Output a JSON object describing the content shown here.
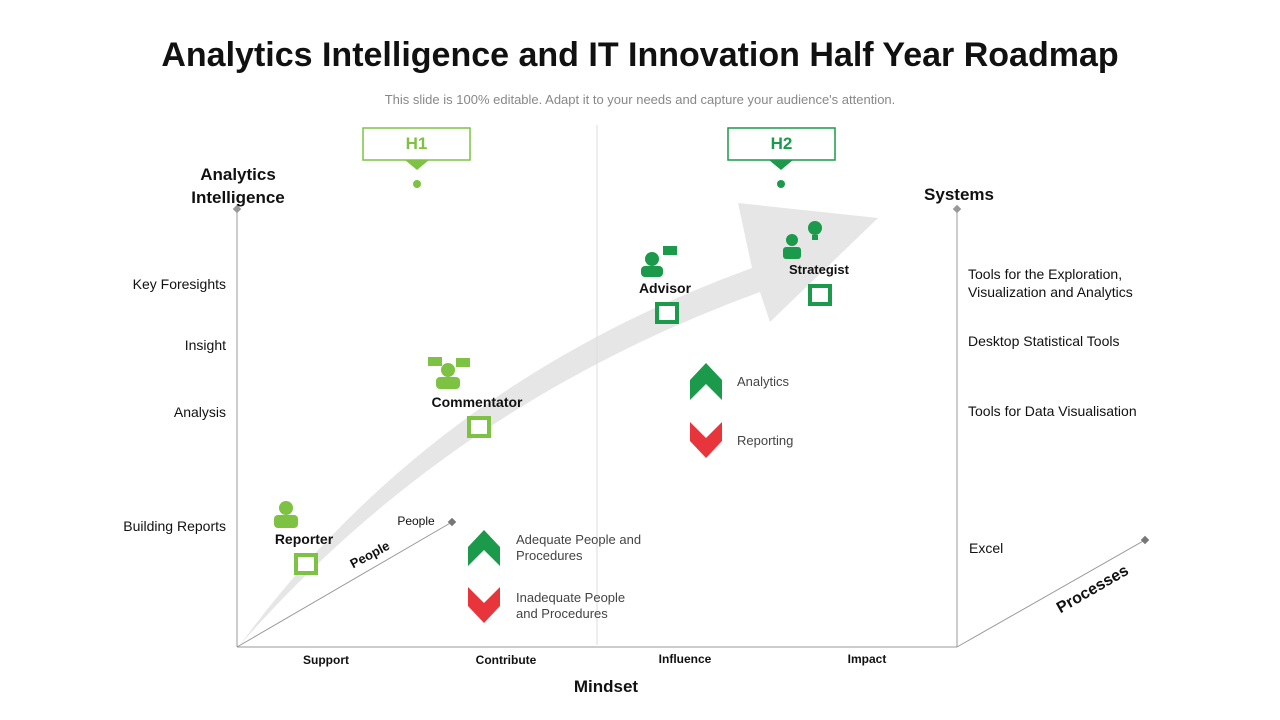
{
  "title": "Analytics Intelligence and IT Innovation Half Year Roadmap",
  "subtitle": "This slide is 100% editable. Adapt it to your needs and capture your audience's attention.",
  "halves": [
    "H1",
    "H2"
  ],
  "left_axis": {
    "title": "Analytics Intelligence",
    "levels": [
      "Key Foresights",
      "Insight",
      "Analysis",
      "Building Reports"
    ]
  },
  "right_axis": {
    "title": "Systems",
    "levels": [
      "Tools for the Exploration, Visualization and Analytics",
      "Desktop Statistical Tools",
      "Tools for Data Visualisation",
      "Excel"
    ]
  },
  "bottom_axis": {
    "title": "Mindset",
    "labels": [
      "Support",
      "Contribute",
      "Influence",
      "Impact"
    ]
  },
  "people_axis": {
    "title": "People",
    "end_label": "People"
  },
  "processes_axis": {
    "title": "Processes"
  },
  "roles": [
    "Reporter",
    "Commentator",
    "Advisor",
    "Strategist"
  ],
  "people_legend": [
    "Adequate People and Procedures",
    "Inadequate People and Procedures"
  ],
  "output_legend": [
    "Analytics",
    "Reporting"
  ]
}
